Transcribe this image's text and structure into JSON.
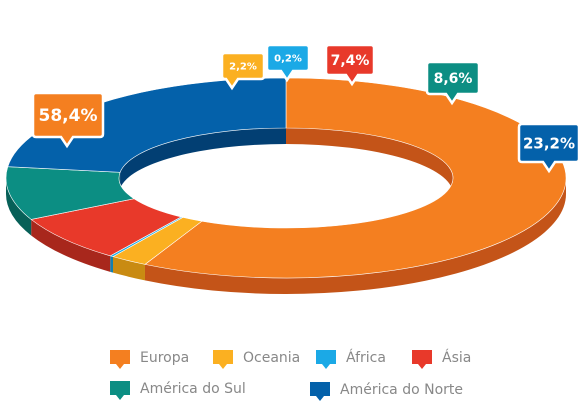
{
  "chart_data": {
    "type": "pie",
    "variant": "3d-donut",
    "title": "",
    "slices": [
      {
        "label": "Europa",
        "value": 58.4,
        "display": "58,4%",
        "color": "#F47F20"
      },
      {
        "label": "Oceania",
        "value": 2.2,
        "display": "2,2%",
        "color": "#FBB021"
      },
      {
        "label": "África",
        "value": 0.2,
        "display": "0,2%",
        "color": "#1BA9E6"
      },
      {
        "label": "Ásia",
        "value": 7.4,
        "display": "7,4%",
        "color": "#E8392A"
      },
      {
        "label": "América do Sul",
        "value": 8.6,
        "display": "8,6%",
        "color": "#0C8E83"
      },
      {
        "label": "América do Norte",
        "value": 23.2,
        "display": "23,2%",
        "color": "#0461AA"
      }
    ],
    "legend_position": "bottom"
  }
}
